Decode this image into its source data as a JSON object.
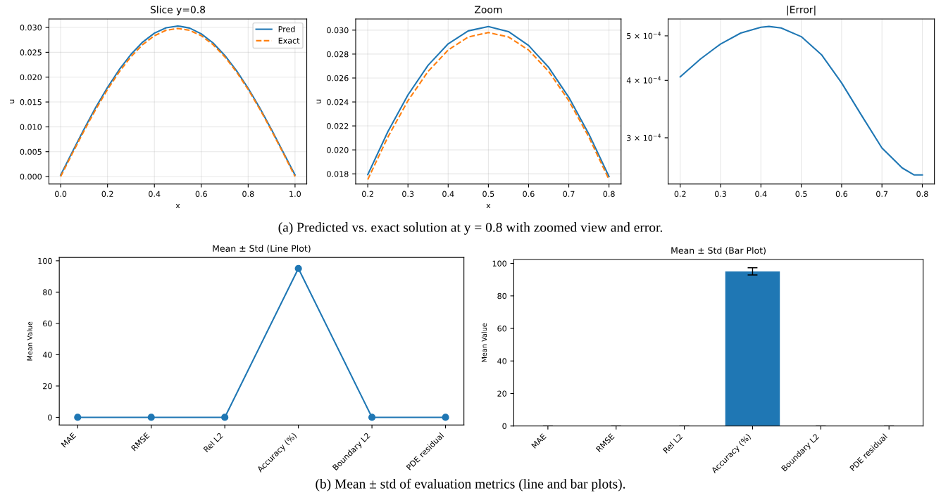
{
  "chart_data": [
    {
      "type": "line",
      "title": "Slice y=0.8",
      "xlabel": "x",
      "ylabel": "u",
      "xlim": [
        -0.05,
        1.05
      ],
      "ylim": [
        -0.0015,
        0.0317
      ],
      "xticks": [
        {
          "value": 0,
          "label": "0.0"
        },
        0.2,
        0.4,
        0.6,
        0.8,
        {
          "value": 1,
          "label": "1.0"
        }
      ],
      "yticks": [
        {
          "value": 0,
          "label": "0.000"
        },
        {
          "value": 0.005,
          "label": "0.005"
        },
        {
          "value": 0.01,
          "label": "0.010"
        },
        {
          "value": 0.015,
          "label": "0.015"
        },
        {
          "value": 0.02,
          "label": "0.020"
        },
        {
          "value": 0.025,
          "label": "0.025"
        },
        {
          "value": 0.03,
          "label": "0.030"
        }
      ],
      "grid": true,
      "legend": "top right",
      "x": [
        0,
        0.05,
        0.1,
        0.15,
        0.2,
        0.25,
        0.3,
        0.35,
        0.4,
        0.45,
        0.5,
        0.55,
        0.6,
        0.65,
        0.7,
        0.75,
        0.8,
        0.85,
        0.9,
        0.95,
        1.0
      ],
      "series": [
        {
          "name": "Pred",
          "color": "#1f77b4",
          "line_style": "solid",
          "values": [
            0.0003,
            0.00498,
            0.00956,
            0.01393,
            0.01793,
            0.02152,
            0.02459,
            0.02706,
            0.02886,
            0.02994,
            0.0303,
            0.02988,
            0.02872,
            0.02689,
            0.02439,
            0.02132,
            0.01777,
            0.01378,
            0.00943,
            0.00486,
            0.0003
          ]
        },
        {
          "name": "Exact",
          "color": "#ff7f0e",
          "line_style": "dashed",
          "values": [
            0,
            0.00466,
            0.00921,
            0.01353,
            0.01752,
            0.02107,
            0.02411,
            0.02655,
            0.02834,
            0.02943,
            0.0298,
            0.02943,
            0.02834,
            0.02655,
            0.02411,
            0.02107,
            0.01752,
            0.01353,
            0.00921,
            0.00466,
            0
          ]
        }
      ],
      "annotations": [
        "(a) Predicted vs. exact solution at y = 0.8 with zoomed view and error."
      ]
    },
    {
      "type": "line",
      "title": "Zoom",
      "xlabel": "x",
      "ylabel": "u",
      "xlim": [
        0.17,
        0.83
      ],
      "ylim": [
        0.01715,
        0.03093
      ],
      "xticks": [
        0.2,
        0.3,
        0.4,
        0.5,
        0.6,
        0.7,
        0.8
      ],
      "yticks": [
        {
          "value": 0.018,
          "label": "0.018"
        },
        {
          "value": 0.02,
          "label": "0.020"
        },
        {
          "value": 0.022,
          "label": "0.022"
        },
        {
          "value": 0.024,
          "label": "0.024"
        },
        {
          "value": 0.026,
          "label": "0.026"
        },
        {
          "value": 0.028,
          "label": "0.028"
        },
        {
          "value": 0.03,
          "label": "0.030"
        }
      ],
      "grid": true,
      "x": [
        0.2,
        0.25,
        0.3,
        0.35,
        0.4,
        0.45,
        0.5,
        0.55,
        0.6,
        0.65,
        0.7,
        0.75,
        0.8
      ],
      "series": [
        {
          "color": "#1f77b4",
          "line_style": "solid",
          "values": [
            0.01793,
            0.02152,
            0.02459,
            0.02706,
            0.02886,
            0.02994,
            0.0303,
            0.02988,
            0.02872,
            0.02689,
            0.02439,
            0.02132,
            0.01777
          ]
        },
        {
          "color": "#ff7f0e",
          "line_style": "dashed",
          "values": [
            0.01752,
            0.02107,
            0.02411,
            0.02655,
            0.02834,
            0.02943,
            0.0298,
            0.02943,
            0.02834,
            0.02655,
            0.02411,
            0.02107,
            0.01752
          ]
        }
      ]
    },
    {
      "type": "line",
      "title": "|Error|",
      "log": "y",
      "xlim": [
        0.17,
        0.83
      ],
      "ylim": [
        0.000238,
        0.000544
      ],
      "xticks": [
        0.2,
        0.3,
        0.4,
        0.5,
        0.6,
        0.7,
        0.8
      ],
      "yticks": [
        {
          "value": 0.0003,
          "label": "3 × 10$^{−4}$"
        },
        {
          "value": 0.0004,
          "label": "4 × 10$^{−4}$"
        },
        {
          "value": 0.0005,
          "label": "5 × 10$^{−4}$"
        }
      ],
      "grid": "x",
      "x": [
        0.2,
        0.25,
        0.3,
        0.35,
        0.4,
        0.42,
        0.45,
        0.5,
        0.55,
        0.6,
        0.65,
        0.7,
        0.75,
        0.78,
        0.8
      ],
      "series": [
        {
          "color": "#1f77b4",
          "line_style": "solid",
          "values": [
            0.000407,
            0.000445,
            0.00048,
            0.000507,
            0.000522,
            0.000524,
            0.00052,
            0.000498,
            0.000455,
            0.000395,
            0.000335,
            0.000285,
            0.000258,
            0.000249,
            0.000249
          ]
        }
      ]
    },
    {
      "type": "line",
      "title": "Mean ± Std (Line Plot)",
      "ylabel": "Mean Value",
      "categories": [
        "MAE",
        "RMSE",
        "Rel L2",
        "Accuracy (%)",
        "Boundary L2",
        "PDE residual"
      ],
      "ylim": [
        -4.9,
        102.1
      ],
      "yticks": [
        0,
        20,
        40,
        60,
        80,
        100
      ],
      "marker": "circle",
      "series": [
        {
          "color": "#1f77b4",
          "values": [
            0,
            0,
            0,
            95.1,
            0,
            0
          ]
        }
      ],
      "annotations": [
        "(b) Mean ± std of evaluation metrics (line and bar plots)."
      ]
    },
    {
      "type": "bar",
      "title": "Mean ± Std (Bar Plot)",
      "ylabel": "Mean Value",
      "categories": [
        "MAE",
        "RMSE",
        "Rel L2",
        "Accuracy (%)",
        "Boundary L2",
        "PDE residual"
      ],
      "ylim": [
        0,
        102.4
      ],
      "yticks": [
        0,
        20,
        40,
        60,
        80,
        100
      ],
      "series": [
        {
          "color": "#1f77b4",
          "values": [
            0,
            0,
            0,
            95.1,
            0,
            0
          ],
          "errors": [
            0,
            0,
            0,
            2.2,
            0,
            0
          ]
        }
      ]
    }
  ]
}
